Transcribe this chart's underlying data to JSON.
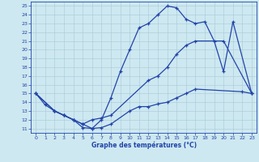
{
  "title": "Graphe des températures (°C)",
  "background_color": "#cde8f0",
  "line_color": "#2244aa",
  "grid_color": "#a8c8d8",
  "xlim": [
    -0.5,
    23.5
  ],
  "ylim": [
    10.5,
    25.5
  ],
  "xticks": [
    0,
    1,
    2,
    3,
    4,
    5,
    6,
    7,
    8,
    9,
    10,
    11,
    12,
    13,
    14,
    15,
    16,
    17,
    18,
    19,
    20,
    21,
    22,
    23
  ],
  "yticks": [
    11,
    12,
    13,
    14,
    15,
    16,
    17,
    18,
    19,
    20,
    21,
    22,
    23,
    24,
    25
  ],
  "curve1_x": [
    0,
    1,
    2,
    3,
    4,
    5,
    6,
    7,
    8,
    9,
    10,
    11,
    12,
    13,
    14,
    15,
    16,
    17,
    18,
    19,
    20,
    21,
    23
  ],
  "curve1_y": [
    15.0,
    13.7,
    13.0,
    12.5,
    12.0,
    11.1,
    11.0,
    12.0,
    14.5,
    17.5,
    20.0,
    22.5,
    23.0,
    24.0,
    25.0,
    24.8,
    23.5,
    23.0,
    23.2,
    21.0,
    17.5,
    23.2,
    15.0
  ],
  "curve2_x": [
    0,
    2,
    3,
    4,
    5,
    6,
    7,
    8,
    12,
    13,
    14,
    15,
    16,
    17,
    20,
    23
  ],
  "curve2_y": [
    15.0,
    13.0,
    12.5,
    12.0,
    11.5,
    12.0,
    12.2,
    12.5,
    16.5,
    17.0,
    18.0,
    19.5,
    20.5,
    21.0,
    21.0,
    15.0
  ],
  "curve3_x": [
    0,
    2,
    3,
    4,
    5,
    6,
    7,
    8,
    10,
    11,
    12,
    13,
    14,
    15,
    16,
    17,
    22,
    23
  ],
  "curve3_y": [
    15.0,
    13.0,
    12.5,
    12.0,
    11.5,
    11.0,
    11.1,
    11.5,
    13.0,
    13.5,
    13.5,
    13.8,
    14.0,
    14.5,
    15.0,
    15.5,
    15.2,
    15.0
  ]
}
